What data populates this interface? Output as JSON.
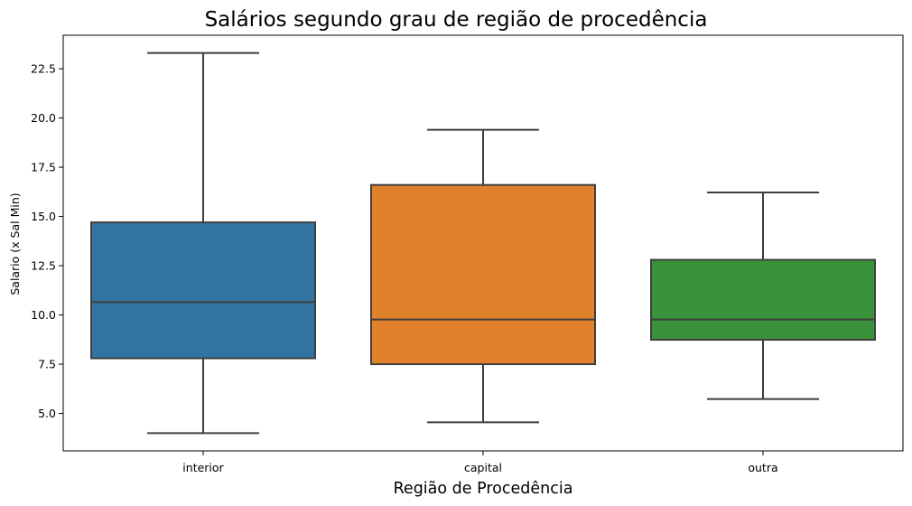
{
  "chart_data": {
    "type": "box",
    "title": "Salários segundo grau de região de procedência",
    "xlabel": "Região de Procedência",
    "ylabel": "Salario (x Sal Min)",
    "ylim": [
      3.1,
      24.2
    ],
    "yticks": [
      5.0,
      7.5,
      10.0,
      12.5,
      15.0,
      17.5,
      20.0,
      22.5
    ],
    "ytick_labels": [
      "5.0",
      "7.5",
      "10.0",
      "12.5",
      "15.0",
      "17.5",
      "20.0",
      "22.5"
    ],
    "grid": false,
    "legend": "none",
    "categories": [
      "interior",
      "capital",
      "outra"
    ],
    "boxes": [
      {
        "category": "interior",
        "whisker_low": 4.0,
        "q1": 7.8,
        "median": 10.65,
        "q3": 14.7,
        "whisker_high": 23.3,
        "color": "#3274a1"
      },
      {
        "category": "capital",
        "whisker_low": 4.55,
        "q1": 7.5,
        "median": 9.77,
        "q3": 16.6,
        "whisker_high": 19.4,
        "color": "#e1812c"
      },
      {
        "category": "outra",
        "whisker_low": 5.73,
        "q1": 8.74,
        "median": 9.77,
        "q3": 12.8,
        "whisker_high": 16.22,
        "color": "#3a923a"
      }
    ],
    "line_color": "#3f3f3f"
  }
}
